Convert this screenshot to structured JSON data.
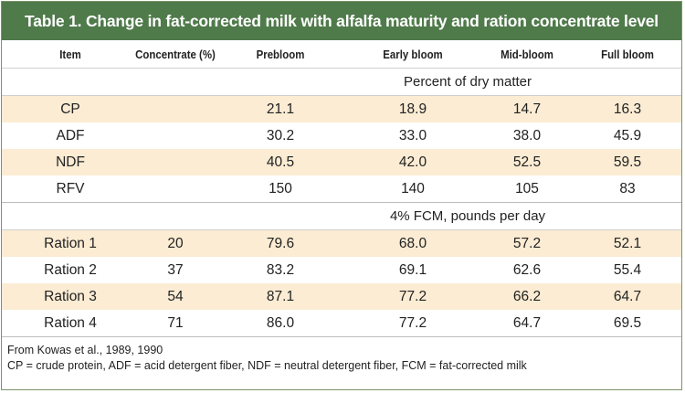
{
  "title": "Table 1. Change in fat-corrected milk with alfalfa maturity and ration concentrate level",
  "columns": [
    "Item",
    "Concentrate (%)",
    "Prebloom",
    "Early bloom",
    "Mid-bloom",
    "Full bloom"
  ],
  "section1": {
    "label": "Percent of dry matter",
    "rows": [
      {
        "item": "CP",
        "conc": "",
        "vals": [
          "21.1",
          "18.9",
          "14.7",
          "16.3"
        ]
      },
      {
        "item": "ADF",
        "conc": "",
        "vals": [
          "30.2",
          "33.0",
          "38.0",
          "45.9"
        ]
      },
      {
        "item": "NDF",
        "conc": "",
        "vals": [
          "40.5",
          "42.0",
          "52.5",
          "59.5"
        ]
      },
      {
        "item": "RFV",
        "conc": "",
        "vals": [
          "150",
          "140",
          "105",
          "83"
        ]
      }
    ]
  },
  "section2": {
    "label": "4% FCM, pounds per day",
    "rows": [
      {
        "item": "Ration 1",
        "conc": "20",
        "vals": [
          "79.6",
          "68.0",
          "57.2",
          "52.1"
        ]
      },
      {
        "item": "Ration 2",
        "conc": "37",
        "vals": [
          "83.2",
          "69.1",
          "62.6",
          "55.4"
        ]
      },
      {
        "item": "Ration 3",
        "conc": "54",
        "vals": [
          "87.1",
          "77.2",
          "66.2",
          "64.7"
        ]
      },
      {
        "item": "Ration 4",
        "conc": "71",
        "vals": [
          "86.0",
          "77.2",
          "64.7",
          "69.5"
        ]
      }
    ]
  },
  "notes": [
    "From Kowas et al., 1989, 1990",
    "CP = crude protein, ADF = acid detergent fiber, NDF = neutral detergent fiber, FCM = fat-corrected milk"
  ],
  "colors": {
    "title_bg": "#4f7a4a",
    "stripe": "#fbecd3"
  }
}
